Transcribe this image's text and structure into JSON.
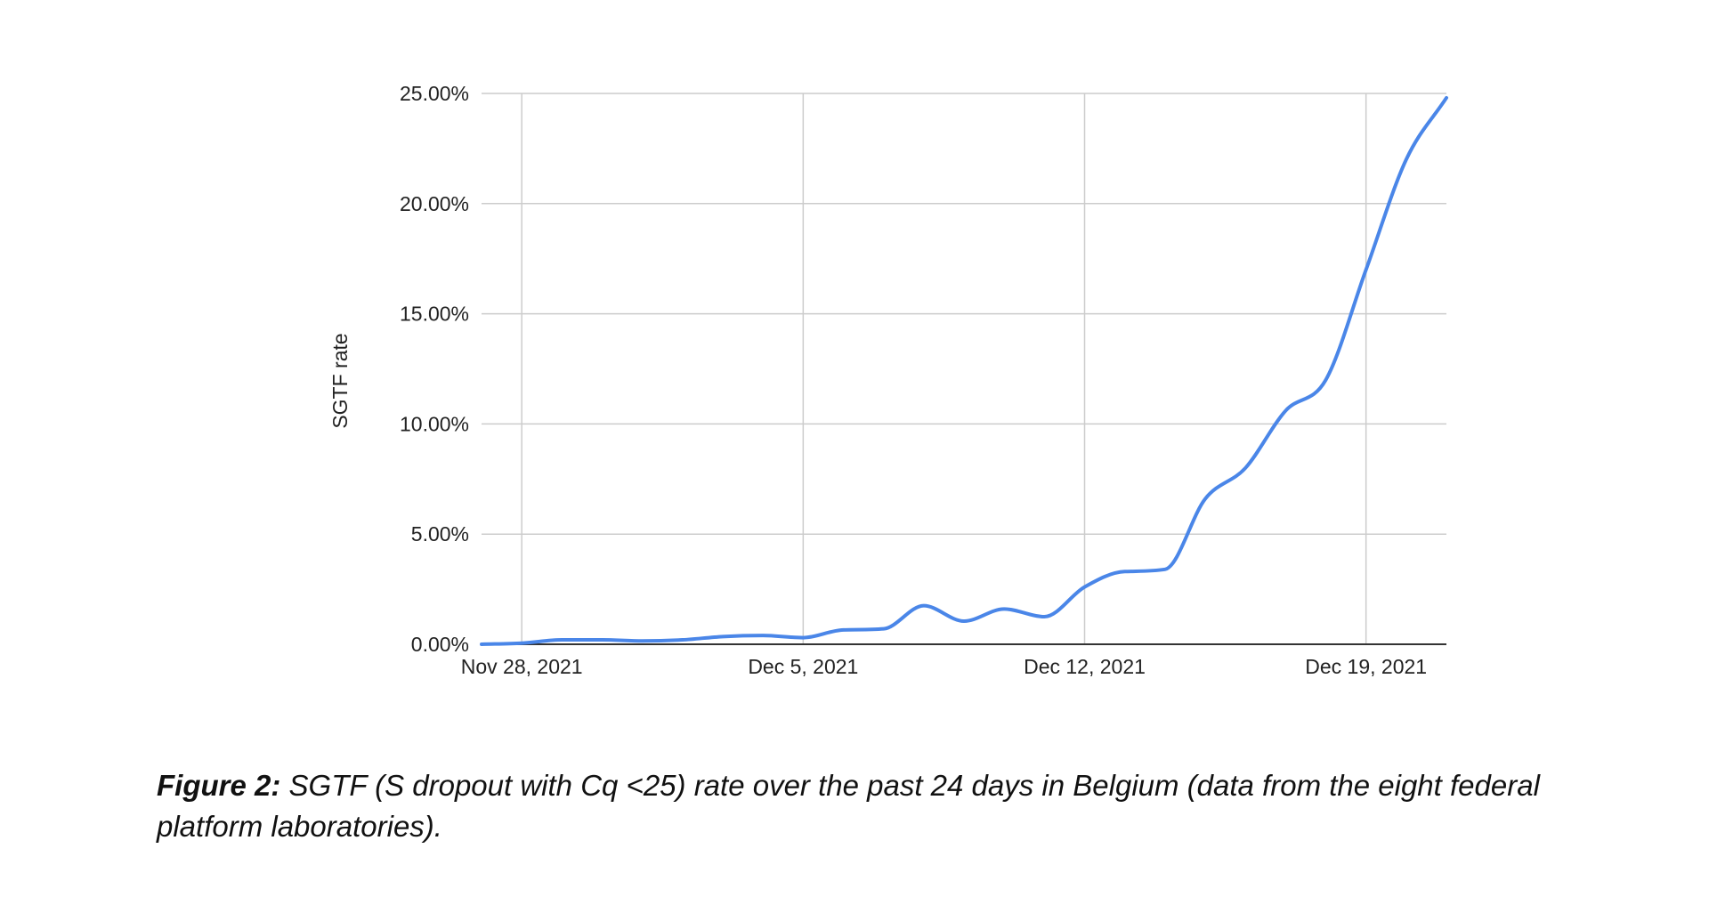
{
  "chart_data": {
    "type": "line",
    "title": "",
    "xlabel": "",
    "ylabel": "SGTF rate",
    "x": [
      "2021-11-27",
      "2021-11-28",
      "2021-11-29",
      "2021-11-30",
      "2021-12-01",
      "2021-12-02",
      "2021-12-03",
      "2021-12-04",
      "2021-12-05",
      "2021-12-06",
      "2021-12-07",
      "2021-12-08",
      "2021-12-09",
      "2021-12-10",
      "2021-12-11",
      "2021-12-12",
      "2021-12-13",
      "2021-12-14",
      "2021-12-15",
      "2021-12-16",
      "2021-12-17",
      "2021-12-18",
      "2021-12-19",
      "2021-12-20",
      "2021-12-21"
    ],
    "series": [
      {
        "values": [
          0.0,
          0.05,
          0.2,
          0.2,
          0.15,
          0.2,
          0.35,
          0.4,
          0.3,
          0.65,
          0.7,
          1.75,
          1.05,
          1.6,
          1.25,
          2.6,
          3.3,
          3.4,
          6.6,
          8.0,
          10.6,
          12.0,
          17.0,
          22.0,
          24.8
        ]
      }
    ],
    "xticks": [
      "Nov 28, 2021",
      "Dec 5, 2021",
      "Dec 12, 2021",
      "Dec 19, 2021"
    ],
    "xtick_dates": [
      "2021-11-28",
      "2021-12-05",
      "2021-12-12",
      "2021-12-19"
    ],
    "yticks": [
      "0.00%",
      "5.00%",
      "10.00%",
      "15.00%",
      "20.00%",
      "25.00%"
    ],
    "ylim": [
      0,
      25
    ],
    "grid": true,
    "legend": "none",
    "line_color": "#4a86e8"
  },
  "caption": {
    "label": "Figure 2:",
    "text": " SGTF (S dropout with Cq <25) rate over the past 24 days in Belgium (data from the eight federal platform laboratories)."
  }
}
